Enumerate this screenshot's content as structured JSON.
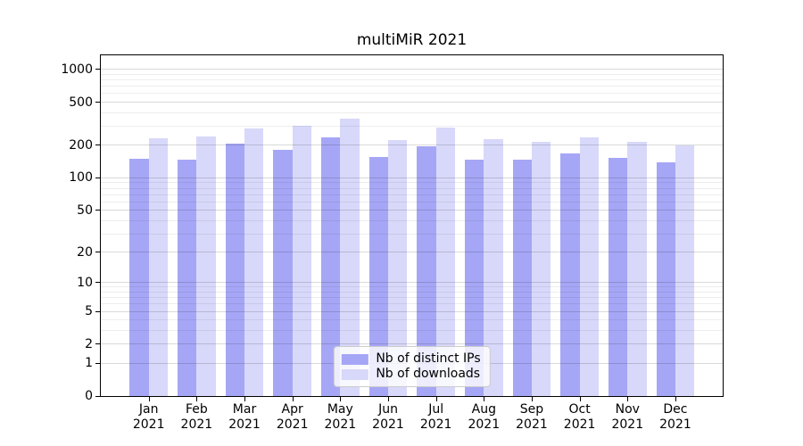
{
  "title": "multiMiR 2021",
  "chart_data": {
    "type": "bar",
    "title": "multiMiR 2021",
    "categories": [
      "Jan 2021",
      "Feb 2021",
      "Mar 2021",
      "Apr 2021",
      "May 2021",
      "Jun 2021",
      "Jul 2021",
      "Aug 2021",
      "Sep 2021",
      "Oct 2021",
      "Nov 2021",
      "Dec 2021"
    ],
    "series": [
      {
        "name": "Nb of distinct IPs",
        "values": [
          150,
          147,
          207,
          182,
          236,
          156,
          195,
          149,
          147,
          170,
          153,
          140
        ]
      },
      {
        "name": "Nb of downloads",
        "values": [
          232,
          240,
          289,
          306,
          355,
          225,
          294,
          227,
          214,
          236,
          215,
          201
        ]
      }
    ],
    "yscale": "log1p",
    "ylim": [
      0,
      1351
    ],
    "yticks": [
      0,
      1,
      2,
      5,
      10,
      20,
      50,
      100,
      200,
      500,
      1000
    ],
    "minor_gridlines": [
      3,
      4,
      6,
      7,
      8,
      9,
      30,
      40,
      60,
      70,
      80,
      90,
      300,
      400,
      600,
      700,
      800,
      900
    ],
    "grid": true,
    "legend_position": "lower center",
    "xlabel": "",
    "ylabel": ""
  },
  "legend": {
    "items": [
      {
        "label": "Nb of distinct IPs",
        "color_key": "distinct_ips"
      },
      {
        "label": "Nb of downloads",
        "color_key": "downloads"
      }
    ]
  },
  "colors": {
    "distinct_ips": "#a6a6f6",
    "downloads": "#d8d8fa",
    "grid_major": "rgba(0,0,0,0.15)",
    "grid_minor": "rgba(0,0,0,0.07)",
    "axis": "#000000",
    "background": "#ffffff"
  }
}
